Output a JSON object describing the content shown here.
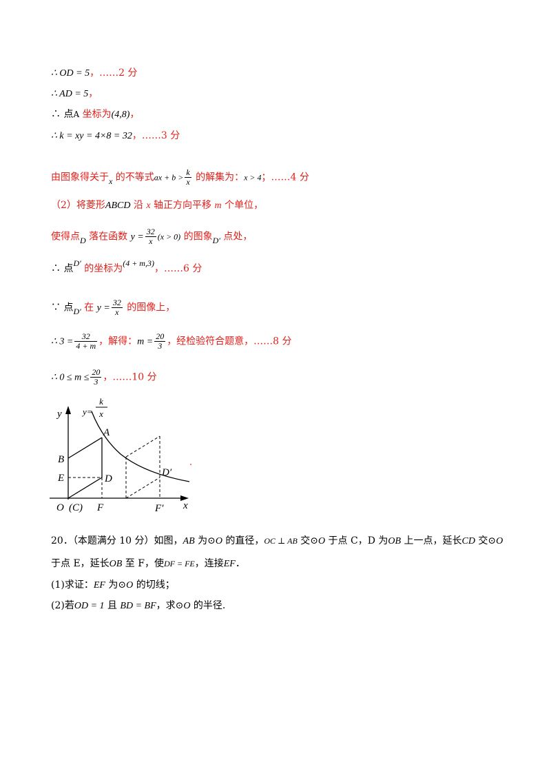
{
  "solution": {
    "l1": {
      "math": "∴ OD = 5",
      "mark": "，……2 分"
    },
    "l2": {
      "math": "∴ AD = 5",
      "mark": "，"
    },
    "l3": {
      "pre": "∴ 点",
      "pt": "A",
      "text": " 坐标为",
      "coord": "(4,8)",
      "mark": "，"
    },
    "l4": {
      "math": "∴ k = xy = 4×8 = 32",
      "mark": "，……3 分"
    },
    "l5": {
      "pre": "由图象得关于",
      "x": "x",
      "text1": " 的不等式",
      "ineq": "ax + b >",
      "frac_num": "k",
      "frac_den": "x",
      "text2": " 的解集为：",
      "sol": "x > 4",
      "mark": "；……4 分"
    },
    "l6": {
      "pre": "（2）将菱形",
      "abcd": "ABCD",
      "text1": " 沿 ",
      "x": "x",
      "text2": " 轴正方向平移 ",
      "m": "m",
      "text3": " 个单位，"
    },
    "l7": {
      "pre": "使得点",
      "d": "D",
      "text1": " 落在函数 ",
      "y": "y =",
      "frac_num": "32",
      "frac_den": "x",
      "cond": "(x > 0)",
      "text2": " 的图象",
      "dp": "D′",
      "text3": " 点处，"
    },
    "l8": {
      "pre": "∴ 点",
      "dp": "D′",
      "text": " 的坐标为",
      "coord": "(4 + m,3)",
      "mark": "，……6 分"
    },
    "l9": {
      "pre": "∵ 点",
      "dp": "D′",
      "text1": " 在 ",
      "y": "y =",
      "frac_num": "32",
      "frac_den": "x",
      "text2": " 的图像上，"
    },
    "l10": {
      "pre": "∴ 3 =",
      "frac_num": "32",
      "frac_den": "4 + m",
      "text1": "，解得：",
      "m": "m =",
      "frac2_num": "20",
      "frac2_den": "3",
      "text2": "，经检验符合题意，……8 分"
    },
    "l11": {
      "pre": "∴ 0 ≤ m ≤",
      "frac_num": "20",
      "frac_den": "3",
      "mark": "，……10 分"
    }
  },
  "figure": {
    "y_axis": "y",
    "x_axis": "x",
    "curve_label": "y=",
    "curve_num": "k",
    "curve_den": "x",
    "points": {
      "A": "A",
      "B": "B",
      "E": "E",
      "D": "D",
      "O": "O",
      "C": "(C)",
      "F": "F",
      "Dp": "D′",
      "Fp": "F′"
    }
  },
  "question": {
    "q1": {
      "num": "20．（本题满分 10 分）如图，",
      "ab": "AB",
      "t1": " 为",
      "circ1": "⊙O",
      "t2": " 的直径，",
      "perp": "OC ⊥ AB",
      "t3": " 交",
      "circ2": "⊙O",
      "t4": " 于点 C，D 为",
      "ob": "OB",
      "t5": " 上一点，延长",
      "cd": "CD",
      "t6": " 交",
      "circ3": "⊙O"
    },
    "q2": {
      "t1": "于点 E，延长",
      "ob": "OB",
      "t2": " 至 F，使",
      "eq": "DF = FE",
      "t3": "，连接",
      "ef": "EF",
      "t4": "．"
    },
    "q3": {
      "t1": "(1)求证：",
      "ef": "EF",
      "t2": " 为",
      "circ": "⊙O",
      "t3": " 的切线；"
    },
    "q4": {
      "t1": "(2)若",
      "od": "OD = 1",
      "t2": " 且 ",
      "bd": "BD = BF",
      "t3": "，求",
      "circ": "⊙O",
      "t4": " 的半径."
    }
  }
}
